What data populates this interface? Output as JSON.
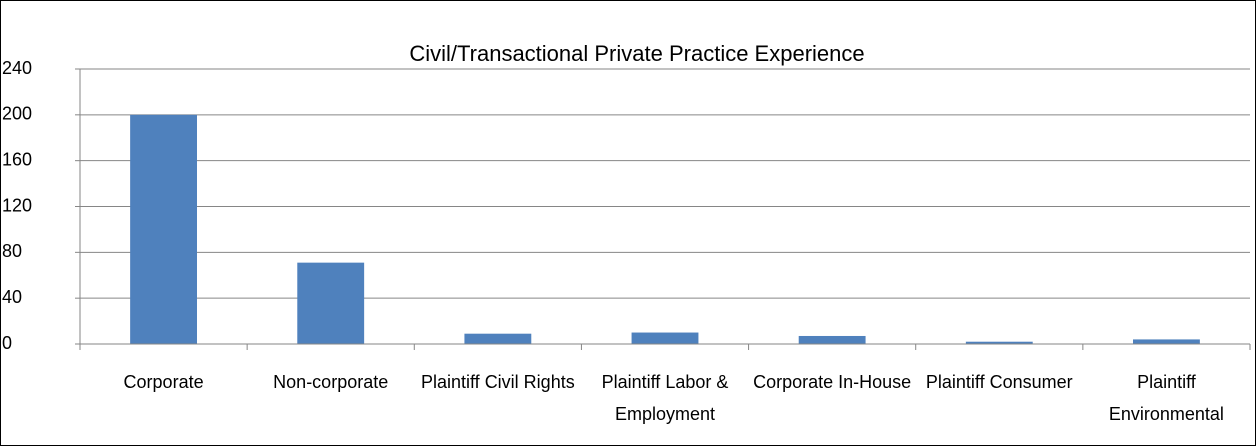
{
  "chart_data": {
    "type": "bar",
    "title": "Civil/Transactional Private Practice Experience",
    "categories": [
      "Corporate",
      "Non-corporate",
      "Plaintiff Civil Rights",
      "Plaintiff Labor & Employment",
      "Corporate In-House",
      "Plaintiff Consumer",
      "Plaintiff Environmental"
    ],
    "values": [
      200,
      71,
      9,
      10,
      7,
      2,
      4
    ],
    "color": "#4f81bd",
    "ylim": [
      0,
      240
    ],
    "yticks": [
      0,
      40,
      80,
      120,
      160,
      200,
      240
    ],
    "grid": true
  }
}
